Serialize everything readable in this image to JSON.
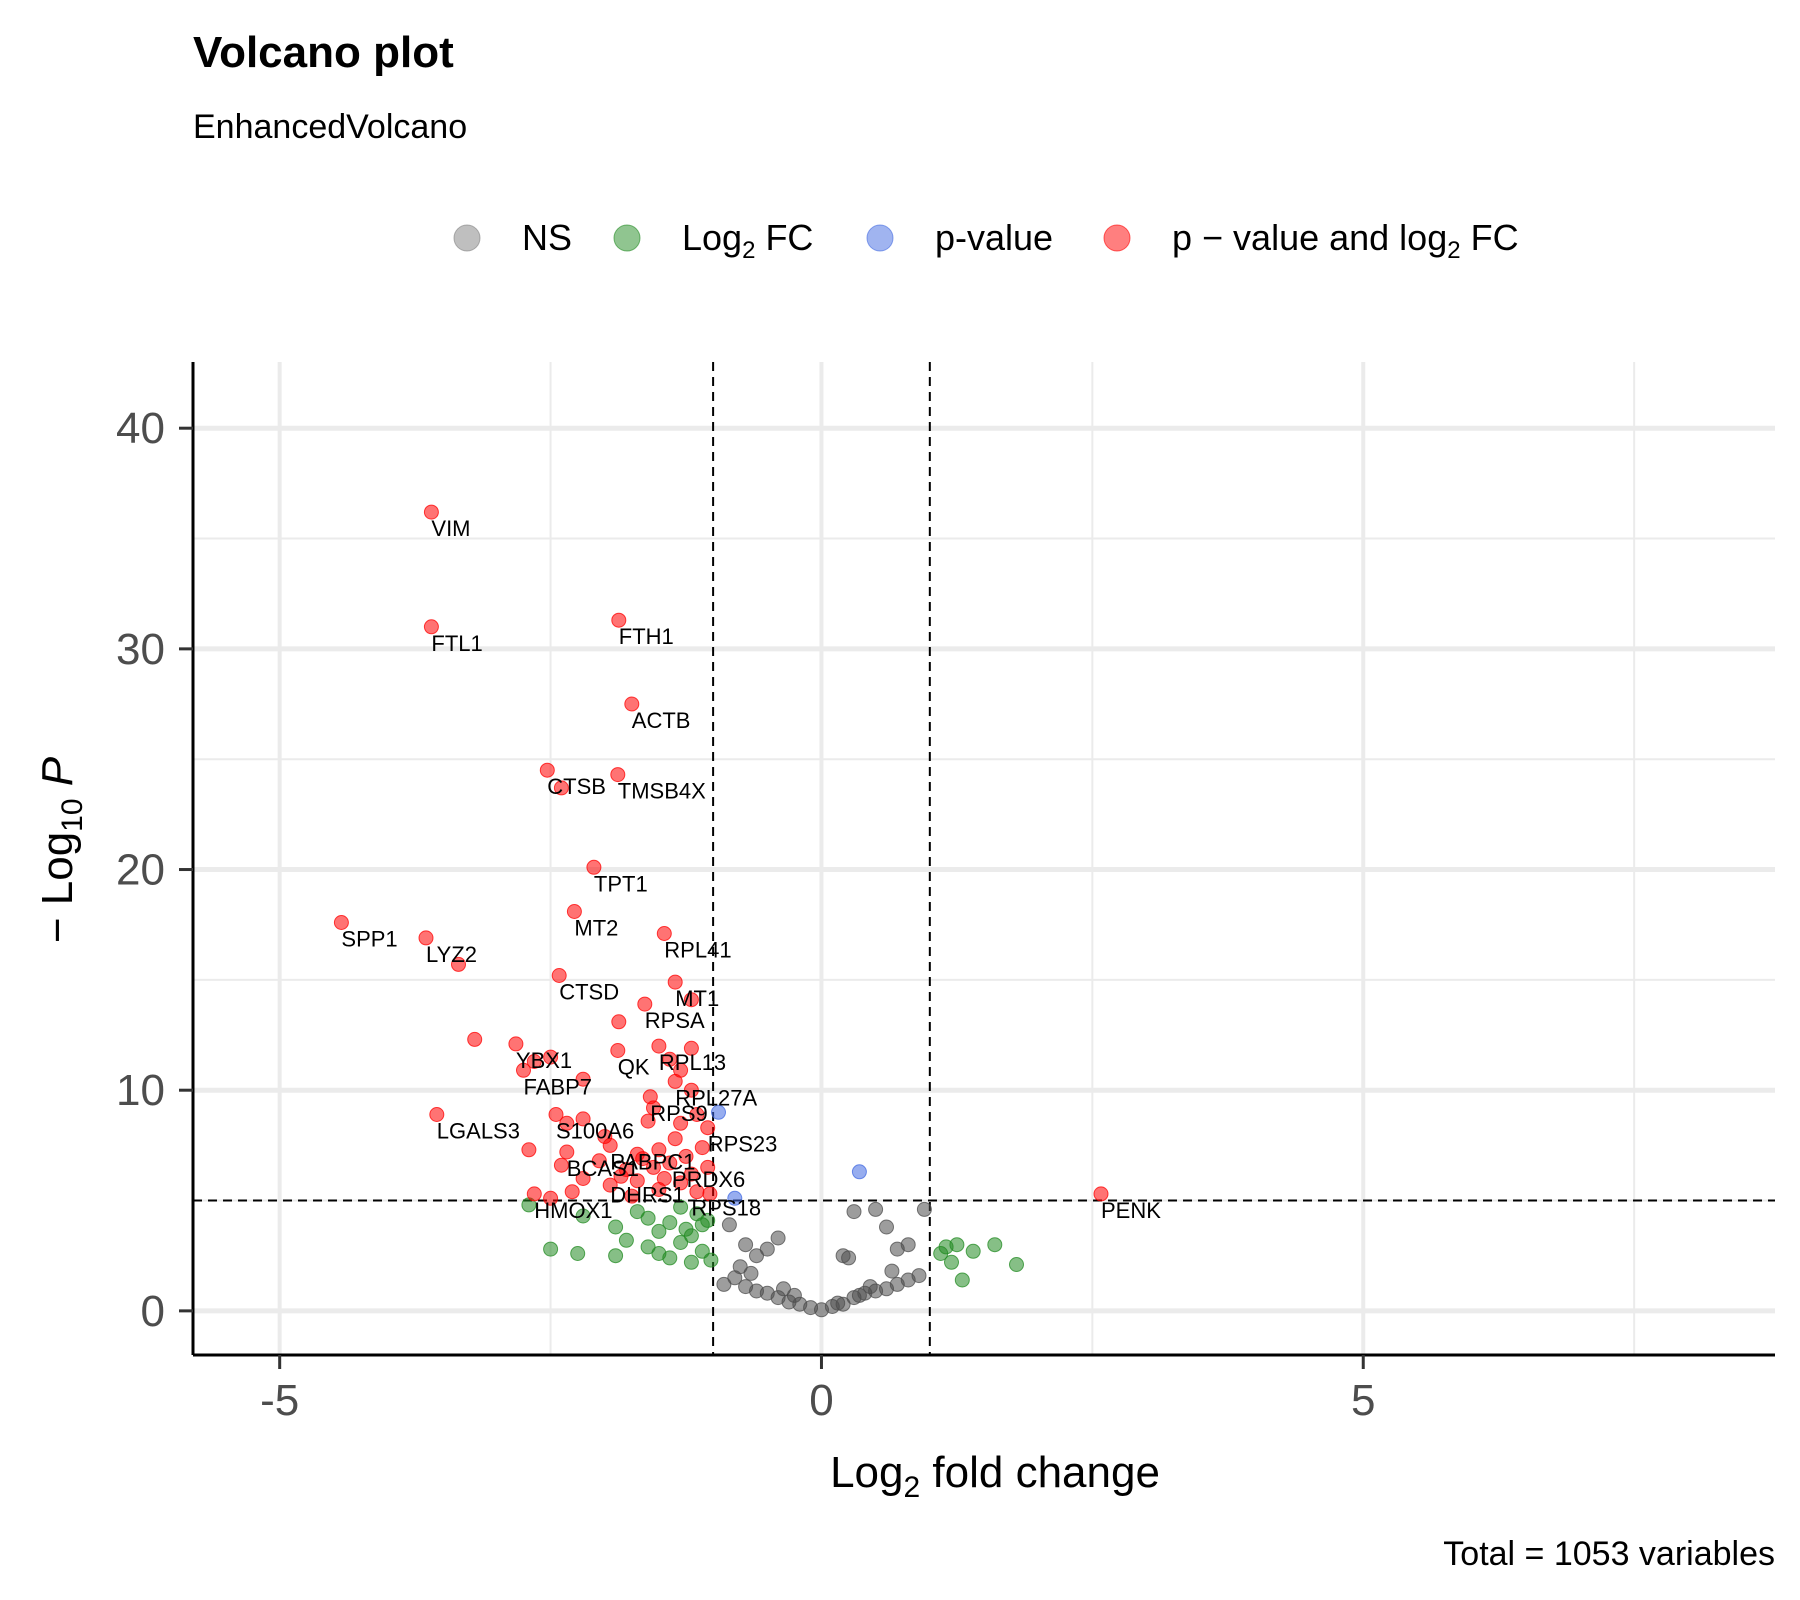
{
  "chart_data": {
    "type": "scatter",
    "title": "Volcano plot",
    "subtitle": "EnhancedVolcano",
    "caption": "Total = 1053 variables",
    "xlabel": {
      "prefix": "Log",
      "sub": "2",
      "suffix": " fold change"
    },
    "ylabel": {
      "prefix": "− Log",
      "sub": "10",
      "suffix": " P"
    },
    "xlim": [
      -5.8,
      8.8
    ],
    "ylim": [
      -2,
      43
    ],
    "x_ticks": [
      -5,
      0,
      5
    ],
    "x_tick_labels": [
      "-5",
      "0",
      "5"
    ],
    "y_ticks": [
      0,
      10,
      20,
      30,
      40
    ],
    "y_tick_labels": [
      "0",
      "10",
      "20",
      "30",
      "40"
    ],
    "fc_cutoff": 1,
    "p_cutoff_neglog10": 5,
    "grid": true,
    "legend_position": "top",
    "legend": [
      {
        "key": "NS",
        "label": "NS",
        "color": "#808080"
      },
      {
        "key": "FC",
        "label_prefix": "Log",
        "label_sub": "2",
        "label_suffix": " FC",
        "color": "#228b22"
      },
      {
        "key": "P",
        "label": "p-value",
        "color": "#4169e1"
      },
      {
        "key": "FCP",
        "label_prefix": "p − value and log",
        "label_sub": "2",
        "label_suffix": " FC",
        "color": "#ff0000"
      }
    ],
    "series": [
      {
        "category": "NS",
        "color": "#4d4d4d",
        "points": [
          [
            -0.9,
            1.2
          ],
          [
            -0.8,
            1.5
          ],
          [
            -0.7,
            1.1
          ],
          [
            -0.6,
            0.9
          ],
          [
            -0.5,
            0.8
          ],
          [
            -0.4,
            0.6
          ],
          [
            -0.3,
            0.4
          ],
          [
            -0.2,
            0.3
          ],
          [
            -0.1,
            0.15
          ],
          [
            0.0,
            0.05
          ],
          [
            0.1,
            0.2
          ],
          [
            0.2,
            0.3
          ],
          [
            0.3,
            0.6
          ],
          [
            0.4,
            0.8
          ],
          [
            0.5,
            0.9
          ],
          [
            0.6,
            1.0
          ],
          [
            0.7,
            1.2
          ],
          [
            0.8,
            1.4
          ],
          [
            0.9,
            1.6
          ],
          [
            -0.6,
            2.5
          ],
          [
            -0.4,
            3.3
          ],
          [
            -0.5,
            2.8
          ],
          [
            -0.7,
            3.0
          ],
          [
            0.2,
            2.5
          ],
          [
            0.25,
            2.4
          ],
          [
            0.5,
            4.6
          ],
          [
            0.6,
            3.8
          ],
          [
            0.7,
            2.8
          ],
          [
            0.8,
            3.0
          ],
          [
            0.95,
            4.6
          ],
          [
            0.3,
            4.5
          ],
          [
            -0.85,
            3.9
          ],
          [
            -0.75,
            2.0
          ],
          [
            -0.65,
            1.7
          ],
          [
            -0.35,
            1.0
          ],
          [
            -0.25,
            0.7
          ],
          [
            0.15,
            0.35
          ],
          [
            0.35,
            0.7
          ],
          [
            0.45,
            1.1
          ],
          [
            0.65,
            1.8
          ]
        ]
      },
      {
        "category": "FC",
        "color": "#228b22",
        "points": [
          [
            -2.7,
            4.8
          ],
          [
            -2.5,
            2.8
          ],
          [
            -2.25,
            2.6
          ],
          [
            -2.2,
            4.3
          ],
          [
            -1.9,
            3.8
          ],
          [
            -1.9,
            2.5
          ],
          [
            -1.8,
            3.2
          ],
          [
            -1.7,
            4.5
          ],
          [
            -1.6,
            2.9
          ],
          [
            -1.5,
            3.6
          ],
          [
            -1.4,
            4.0
          ],
          [
            -1.3,
            3.1
          ],
          [
            -1.2,
            3.4
          ],
          [
            -1.1,
            2.7
          ],
          [
            -1.05,
            4.1
          ],
          [
            -1.5,
            2.6
          ],
          [
            -1.3,
            4.7
          ],
          [
            -1.2,
            2.2
          ],
          [
            -1.1,
            3.9
          ],
          [
            -1.6,
            4.2
          ],
          [
            -1.4,
            2.4
          ],
          [
            -1.25,
            3.7
          ],
          [
            -1.15,
            4.4
          ],
          [
            -1.02,
            2.3
          ],
          [
            1.1,
            2.6
          ],
          [
            1.2,
            2.2
          ],
          [
            1.4,
            2.7
          ],
          [
            1.6,
            3.0
          ],
          [
            1.8,
            2.1
          ],
          [
            1.3,
            1.4
          ],
          [
            1.15,
            2.9
          ],
          [
            1.25,
            3.0
          ]
        ]
      },
      {
        "category": "P",
        "color": "#4169e1",
        "points": [
          [
            -0.95,
            9.0
          ],
          [
            -0.8,
            5.1
          ],
          [
            0.35,
            6.3
          ]
        ]
      },
      {
        "category": "FCP",
        "color": "#ff0000",
        "points": [
          [
            -3.6,
            36.2
          ],
          [
            -3.6,
            31.0
          ],
          [
            -1.87,
            31.3
          ],
          [
            -1.75,
            27.5
          ],
          [
            -2.53,
            24.5
          ],
          [
            -1.88,
            24.3
          ],
          [
            -2.4,
            23.7
          ],
          [
            -2.1,
            20.1
          ],
          [
            -4.43,
            17.6
          ],
          [
            -3.65,
            16.9
          ],
          [
            -2.28,
            18.1
          ],
          [
            -1.45,
            17.1
          ],
          [
            -3.35,
            15.7
          ],
          [
            -2.42,
            15.2
          ],
          [
            -1.35,
            14.9
          ],
          [
            -1.63,
            13.9
          ],
          [
            -1.2,
            14.1
          ],
          [
            -1.87,
            13.1
          ],
          [
            -3.2,
            12.3
          ],
          [
            -2.82,
            12.1
          ],
          [
            -1.88,
            11.8
          ],
          [
            -1.5,
            12.0
          ],
          [
            -1.2,
            11.9
          ],
          [
            -2.65,
            11.3
          ],
          [
            -2.5,
            11.5
          ],
          [
            -1.4,
            11.4
          ],
          [
            -1.3,
            10.9
          ],
          [
            -2.75,
            10.9
          ],
          [
            -2.2,
            10.5
          ],
          [
            -1.35,
            10.4
          ],
          [
            -1.2,
            10.0
          ],
          [
            -1.58,
            9.7
          ],
          [
            -3.55,
            8.9
          ],
          [
            -2.45,
            8.9
          ],
          [
            -2.35,
            8.5
          ],
          [
            -2.2,
            8.7
          ],
          [
            -1.6,
            8.6
          ],
          [
            -1.3,
            8.5
          ],
          [
            -1.05,
            8.3
          ],
          [
            -2.7,
            7.3
          ],
          [
            -2.35,
            7.2
          ],
          [
            -1.95,
            7.5
          ],
          [
            -1.7,
            7.1
          ],
          [
            -1.5,
            7.3
          ],
          [
            -1.25,
            7.0
          ],
          [
            -1.1,
            7.4
          ],
          [
            -2.4,
            6.6
          ],
          [
            -2.05,
            6.8
          ],
          [
            -1.8,
            6.4
          ],
          [
            -1.55,
            6.5
          ],
          [
            -1.4,
            6.7
          ],
          [
            -1.2,
            6.2
          ],
          [
            -1.05,
            6.5
          ],
          [
            -2.2,
            6.0
          ],
          [
            -1.95,
            5.7
          ],
          [
            -1.7,
            5.9
          ],
          [
            -1.5,
            5.5
          ],
          [
            -1.3,
            5.8
          ],
          [
            -1.15,
            5.4
          ],
          [
            -2.65,
            5.3
          ],
          [
            -2.5,
            5.1
          ],
          [
            -1.03,
            5.3
          ],
          [
            2.58,
            5.3
          ],
          [
            -2.3,
            5.4
          ],
          [
            -1.85,
            6.1
          ],
          [
            -1.65,
            6.9
          ],
          [
            -1.45,
            6.0
          ],
          [
            -1.35,
            7.8
          ],
          [
            -1.55,
            9.2
          ],
          [
            -1.15,
            8.9
          ],
          [
            -2.0,
            7.9
          ],
          [
            -1.75,
            5.2
          ]
        ]
      }
    ],
    "labels": [
      {
        "text": "VIM",
        "x": -3.6,
        "y": 36.2
      },
      {
        "text": "FTL1",
        "x": -3.6,
        "y": 31.0
      },
      {
        "text": "FTH1",
        "x": -1.87,
        "y": 31.3
      },
      {
        "text": "ACTB",
        "x": -1.75,
        "y": 27.5
      },
      {
        "text": "CTSB",
        "x": -2.53,
        "y": 24.5
      },
      {
        "text": "TMSB4X",
        "x": -1.88,
        "y": 24.3
      },
      {
        "text": "TPT1",
        "x": -2.1,
        "y": 20.1
      },
      {
        "text": "MT2",
        "x": -2.28,
        "y": 18.1
      },
      {
        "text": "SPP1",
        "x": -4.43,
        "y": 17.6
      },
      {
        "text": "LYZ2",
        "x": -3.65,
        "y": 16.9
      },
      {
        "text": "RPL41",
        "x": -1.45,
        "y": 17.1
      },
      {
        "text": "CTSD",
        "x": -2.42,
        "y": 15.2
      },
      {
        "text": "MT1",
        "x": -1.35,
        "y": 14.9
      },
      {
        "text": "RPSA",
        "x": -1.63,
        "y": 13.9
      },
      {
        "text": "YBX1",
        "x": -2.82,
        "y": 12.1
      },
      {
        "text": "QK",
        "x": -1.88,
        "y": 11.8
      },
      {
        "text": "RPL13",
        "x": -1.5,
        "y": 12.0
      },
      {
        "text": "FABP7",
        "x": -2.75,
        "y": 10.9
      },
      {
        "text": "RPL27A",
        "x": -1.35,
        "y": 10.4
      },
      {
        "text": "RPS9",
        "x": -1.58,
        "y": 9.7
      },
      {
        "text": "LGALS3",
        "x": -3.55,
        "y": 8.9
      },
      {
        "text": "S100A6",
        "x": -2.45,
        "y": 8.9
      },
      {
        "text": "RPS23",
        "x": -1.05,
        "y": 8.3
      },
      {
        "text": "PABPC1",
        "x": -1.95,
        "y": 7.5
      },
      {
        "text": "BCAS1",
        "x": -2.35,
        "y": 7.2
      },
      {
        "text": "PRDX6",
        "x": -1.38,
        "y": 6.7
      },
      {
        "text": "DHRS1",
        "x": -1.95,
        "y": 6.0
      },
      {
        "text": "HMOX1",
        "x": -2.65,
        "y": 5.3
      },
      {
        "text": "RPS18",
        "x": -1.2,
        "y": 5.4
      },
      {
        "text": "PENK",
        "x": 2.58,
        "y": 5.3
      }
    ]
  }
}
